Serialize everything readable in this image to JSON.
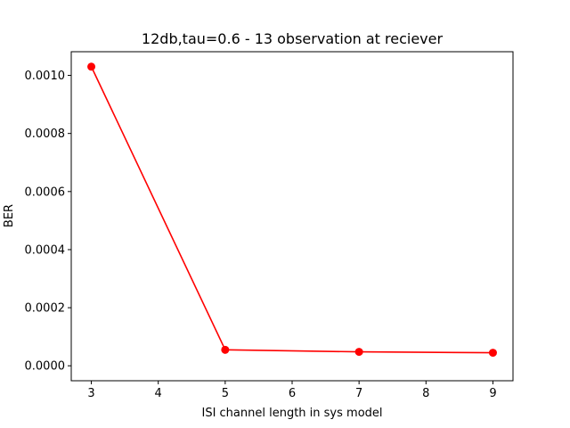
{
  "chart_data": {
    "type": "line",
    "title": "12db,tau=0.6 - 13 observation at reciever",
    "xlabel": "ISI channel length in sys model",
    "ylabel": "BER",
    "xlim": [
      2.7,
      9.3
    ],
    "ylim": [
      -5.15e-05,
      0.0010815
    ],
    "xticks": [
      3,
      4,
      5,
      6,
      7,
      8,
      9
    ],
    "xtick_labels": [
      "3",
      "4",
      "5",
      "6",
      "7",
      "8",
      "9"
    ],
    "yticks": [
      0,
      0.0002,
      0.0004,
      0.0006,
      0.0008,
      0.001
    ],
    "ytick_labels": [
      "0.0000",
      "0.0002",
      "0.0004",
      "0.0006",
      "0.0008",
      "0.0010"
    ],
    "grid": false,
    "series": [
      {
        "color": "#ff0000",
        "marker": "circle",
        "x": [
          3,
          5,
          7,
          9
        ],
        "y": [
          0.00103,
          5.5e-05,
          4.8e-05,
          4.5e-05
        ]
      }
    ]
  }
}
